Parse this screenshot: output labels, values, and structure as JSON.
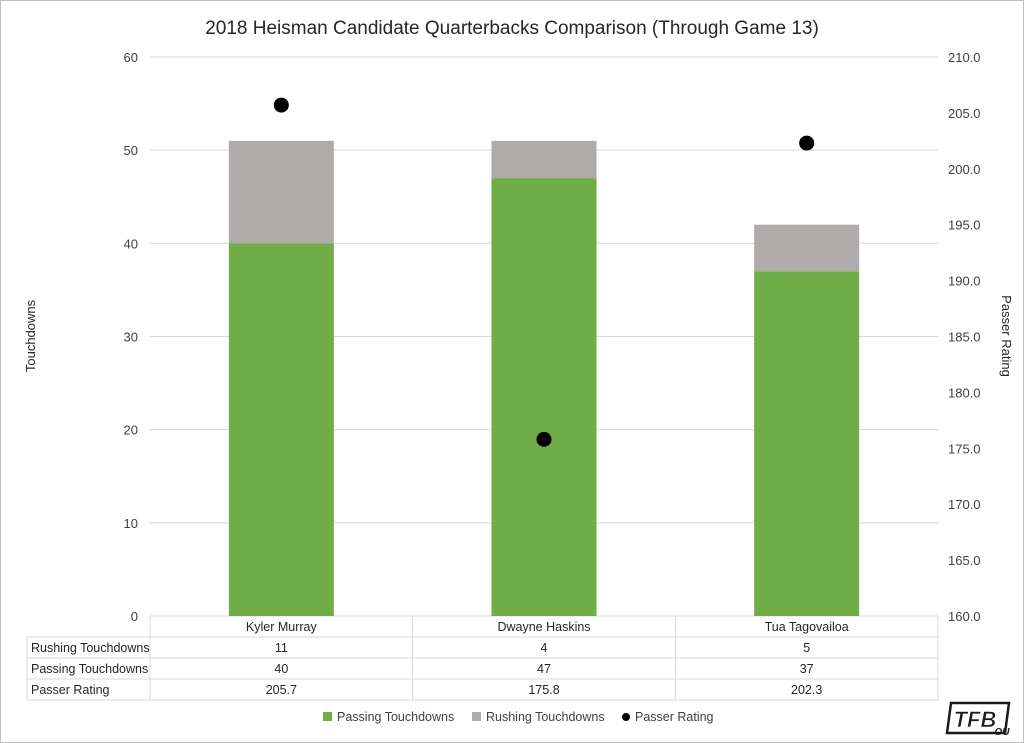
{
  "chart_data": {
    "type": "bar",
    "title": "2018 Heisman Candidate Quarterbacks Comparison (Through Game 13)",
    "ylabel": "Touchdowns",
    "y2label": "Passer Rating",
    "ylim": [
      0,
      60
    ],
    "y_ticks": [
      "0",
      "10",
      "20",
      "30",
      "40",
      "50",
      "60"
    ],
    "y2lim": [
      160,
      210
    ],
    "y2_ticks": [
      "160.0",
      "165.0",
      "170.0",
      "175.0",
      "180.0",
      "185.0",
      "190.0",
      "195.0",
      "200.0",
      "205.0",
      "210.0"
    ],
    "categories": [
      "Kyler Murray",
      "Dwayne Haskins",
      "Tua Tagovailoa"
    ],
    "stacked": true,
    "grid": true,
    "legend": "bottom",
    "series": [
      {
        "name": "Passing Touchdowns",
        "type": "bar",
        "axis": "left",
        "color": "#70ad47",
        "values": [
          40,
          47,
          37
        ]
      },
      {
        "name": "Rushing Touchdowns",
        "type": "bar",
        "axis": "left",
        "color": "#afabab",
        "values": [
          11,
          4,
          5
        ]
      },
      {
        "name": "Passer Rating",
        "type": "scatter",
        "axis": "right",
        "color": "#000000",
        "values": [
          205.7,
          175.8,
          202.3
        ]
      }
    ],
    "data_table": {
      "rows": [
        {
          "label": "Rushing Touchdowns",
          "cells": [
            "11",
            "4",
            "5"
          ]
        },
        {
          "label": "Passing Touchdowns",
          "cells": [
            "40",
            "47",
            "37"
          ]
        },
        {
          "label": "Passer Rating",
          "cells": [
            "205.7",
            "175.8",
            "202.3"
          ]
        }
      ]
    },
    "legend_entries": [
      {
        "label": "Passing Touchdowns",
        "marker": "square",
        "color": "#70ad47"
      },
      {
        "label": "Rushing Touchdowns",
        "marker": "square",
        "color": "#afabab"
      },
      {
        "label": "Passer Rating",
        "marker": "circle",
        "color": "#000000"
      }
    ]
  },
  "logo": {
    "text": "TFB",
    "subtext": "OU",
    "color": "#1a1a1a"
  }
}
